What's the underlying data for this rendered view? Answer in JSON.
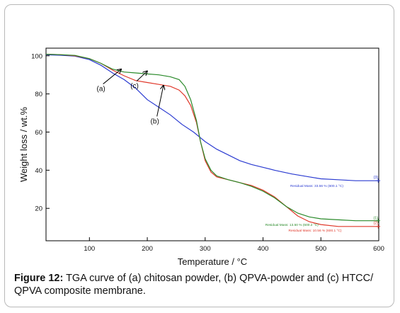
{
  "caption": {
    "label": "Figure 12:",
    "text": "TGA curve of (a) chitosan powder, (b) QPVA-powder and (c) HTCC/ QPVA composite membrane."
  },
  "chart_data": {
    "type": "line",
    "xlabel": "Temperature / °C",
    "ylabel": "Weight loss / wt.%",
    "xlim": [
      25,
      600
    ],
    "ylim": [
      3,
      104
    ],
    "xticks": [
      100,
      200,
      300,
      400,
      500,
      600
    ],
    "yticks": [
      20,
      40,
      60,
      80,
      100
    ],
    "grid": false,
    "colors": {
      "a": "#2b3bd1",
      "b": "#e0382a",
      "c": "#2a8a2a",
      "axis": "#000000"
    },
    "series": [
      {
        "id": "a",
        "color": "#2b3bd1",
        "points": [
          [
            25,
            100.5
          ],
          [
            50,
            100.3
          ],
          [
            75,
            99.8
          ],
          [
            100,
            98
          ],
          [
            120,
            95
          ],
          [
            140,
            91
          ],
          [
            160,
            87.5
          ],
          [
            180,
            83
          ],
          [
            200,
            77
          ],
          [
            220,
            73
          ],
          [
            240,
            69
          ],
          [
            260,
            64
          ],
          [
            280,
            60
          ],
          [
            300,
            55
          ],
          [
            320,
            51
          ],
          [
            340,
            48
          ],
          [
            360,
            45
          ],
          [
            380,
            43
          ],
          [
            400,
            41.5
          ],
          [
            420,
            40
          ],
          [
            450,
            38
          ],
          [
            480,
            36.5
          ],
          [
            500,
            35.5
          ],
          [
            530,
            35
          ],
          [
            560,
            34.5
          ],
          [
            600,
            34.5
          ]
        ]
      },
      {
        "id": "b",
        "color": "#e0382a",
        "points": [
          [
            25,
            100.8
          ],
          [
            50,
            100.6
          ],
          [
            75,
            100
          ],
          [
            100,
            98.5
          ],
          [
            120,
            96
          ],
          [
            140,
            92.5
          ],
          [
            160,
            89.5
          ],
          [
            180,
            87
          ],
          [
            200,
            86
          ],
          [
            220,
            85
          ],
          [
            240,
            84
          ],
          [
            255,
            82
          ],
          [
            265,
            79
          ],
          [
            275,
            74
          ],
          [
            285,
            65
          ],
          [
            292,
            55
          ],
          [
            300,
            45
          ],
          [
            310,
            39
          ],
          [
            320,
            36.5
          ],
          [
            340,
            35
          ],
          [
            360,
            33.5
          ],
          [
            380,
            32
          ],
          [
            400,
            29.5
          ],
          [
            420,
            26
          ],
          [
            440,
            21
          ],
          [
            460,
            16
          ],
          [
            480,
            13
          ],
          [
            500,
            11.5
          ],
          [
            530,
            10.5
          ],
          [
            560,
            10.5
          ],
          [
            600,
            10.5
          ]
        ]
      },
      {
        "id": "c",
        "color": "#2a8a2a",
        "points": [
          [
            25,
            100.8
          ],
          [
            50,
            100.6
          ],
          [
            75,
            100.2
          ],
          [
            100,
            98.5
          ],
          [
            120,
            96
          ],
          [
            140,
            93
          ],
          [
            160,
            91.5
          ],
          [
            180,
            91
          ],
          [
            200,
            90.5
          ],
          [
            220,
            90
          ],
          [
            240,
            89
          ],
          [
            255,
            87.5
          ],
          [
            265,
            84
          ],
          [
            275,
            77
          ],
          [
            285,
            66
          ],
          [
            292,
            55
          ],
          [
            300,
            46
          ],
          [
            310,
            40
          ],
          [
            320,
            37
          ],
          [
            340,
            35
          ],
          [
            360,
            33.5
          ],
          [
            380,
            31.5
          ],
          [
            400,
            29
          ],
          [
            420,
            25.5
          ],
          [
            440,
            21
          ],
          [
            460,
            17.5
          ],
          [
            480,
            15.5
          ],
          [
            500,
            14.5
          ],
          [
            530,
            14
          ],
          [
            560,
            13.5
          ],
          [
            600,
            13.5
          ]
        ]
      }
    ],
    "annotations": [
      {
        "id": "a",
        "text": "(a)",
        "x": 120,
        "y": 83,
        "arrow_to": [
          155,
          93
        ]
      },
      {
        "id": "c",
        "text": "(c)",
        "x": 178,
        "y": 84.5,
        "arrow_to": [
          200,
          92
        ]
      },
      {
        "id": "b",
        "text": "(b)",
        "x": 213,
        "y": 66,
        "arrow_to": [
          228,
          84.5
        ]
      }
    ],
    "end_labels": [
      {
        "series": "a",
        "text": "(3)",
        "x": 599,
        "y": 36.5
      },
      {
        "series": "c",
        "text": "(1)",
        "x": 599,
        "y": 15
      },
      {
        "series": "b",
        "text": "(2)",
        "x": 599,
        "y": 12.5
      }
    ],
    "residual_labels": [
      {
        "series": "a",
        "text": "Residual Mass: 33.56 % (600.1 °C)",
        "x": 447,
        "y": 32,
        "marker": [
          599,
          34.5
        ]
      },
      {
        "series": "c",
        "text": "Residual Mass: 13.50 % (600.2 °C)",
        "x": 404,
        "y": 11.5,
        "marker": [
          599,
          13.5
        ]
      },
      {
        "series": "b",
        "text": "Residual Mass: 10.56 % (600.1 °C)",
        "x": 444,
        "y": 8.5,
        "marker": [
          599,
          10.5
        ]
      }
    ]
  }
}
